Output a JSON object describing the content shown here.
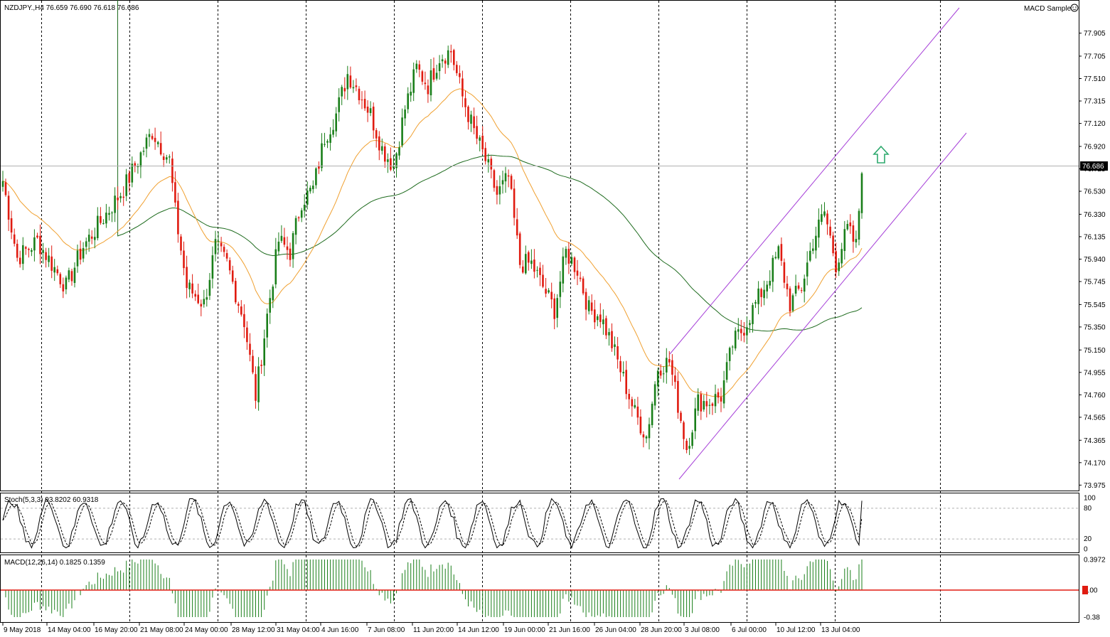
{
  "window": {
    "symbol_header": "NZDJPY.,H4  76.659 76.690 76.618 76.686",
    "indicator_header": "MACD Sample"
  },
  "colors": {
    "bull": "#1a7f1a",
    "bear": "#e01b10",
    "ma_slow": "#1e6b1e",
    "ma_fast": "#f0a030",
    "channel": "#a640d8",
    "arrow": "#2eaa6e",
    "macd_hist": "#1a7f1a",
    "macd_signal": "#e01b10",
    "grid": "#000000"
  },
  "chart_data": [
    {
      "type": "candlestick",
      "title": "NZDJPY.,H4  76.659 76.690 76.618 76.686",
      "price_ticks": [
        "77.905",
        "77.705",
        "77.510",
        "77.315",
        "77.120",
        "76.920",
        "76.725",
        "76.530",
        "76.330",
        "76.135",
        "75.940",
        "75.745",
        "75.545",
        "75.350",
        "75.150",
        "74.955",
        "74.760",
        "74.565",
        "74.365",
        "74.170",
        "73.975"
      ],
      "ylim": [
        73.94,
        78.02
      ],
      "current_price": "76.686",
      "time_ticks": [
        "9 May 2018",
        "14 May 04:00",
        "16 May 20:00",
        "21 May 08:00",
        "24 May 00:00",
        "28 May 12:00",
        "31 May 04:00",
        "4 Jun 16:00",
        "7 Jun 08:00",
        "11 Jun 20:00",
        "14 Jun 12:00",
        "19 Jun 00:00",
        "21 Jun 16:00",
        "26 Jun 04:00",
        "28 Jun 20:00",
        "3 Jul 08:00",
        "6 Jul 00:00",
        "10 Jul 12:00",
        "13 Jul 04:00"
      ],
      "trend_channel": {
        "label": "ascending channel",
        "direction": "up"
      },
      "signal_arrow": "up"
    },
    {
      "type": "line",
      "title": "Stoch(5,3,3) 93.8202 60.9318",
      "levels": [
        "100",
        "80",
        "20",
        "0"
      ],
      "ylim": [
        0,
        100
      ]
    },
    {
      "type": "bar",
      "title": "MACD(12,26,14) 0.1825 0.1359",
      "ticks": [
        "0.3972",
        "0.00",
        "-0.38"
      ],
      "ylim": [
        -0.38,
        0.3972
      ]
    }
  ]
}
